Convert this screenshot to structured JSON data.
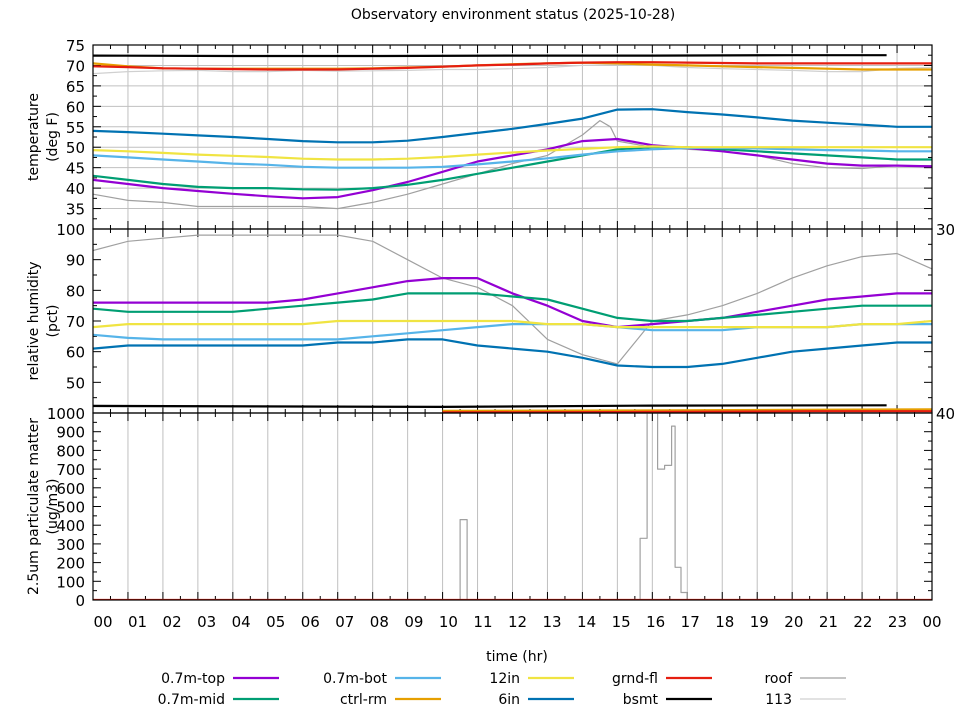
{
  "chart_data": {
    "type": "line",
    "title": "Observatory environment status (2025-10-28)",
    "xlabel": "time (hr)",
    "xlim": [
      0,
      24
    ],
    "x_tick_labels": [
      "00",
      "01",
      "02",
      "03",
      "04",
      "05",
      "06",
      "07",
      "08",
      "09",
      "10",
      "11",
      "12",
      "13",
      "14",
      "15",
      "16",
      "17",
      "18",
      "19",
      "20",
      "21",
      "22",
      "23",
      "00"
    ],
    "grid": "vertical lines every hour; temperature panel also horizontal every 5",
    "legend": {
      "placement": "bottom",
      "entries": [
        {
          "name": "0.7m-top",
          "color": "#9400d3"
        },
        {
          "name": "0.7m-bot",
          "color": "#56b4e9"
        },
        {
          "name": "12in",
          "color": "#f0e442"
        },
        {
          "name": "grnd-fl",
          "color": "#e51e10"
        },
        {
          "name": "roof",
          "color": "#a0a0a0"
        },
        {
          "name": "0.7m-mid",
          "color": "#009e73"
        },
        {
          "name": "ctrl-rm",
          "color": "#e69f00"
        },
        {
          "name": "6in",
          "color": "#0072b2"
        },
        {
          "name": "bsmt",
          "color": "#000000"
        },
        {
          "name": "113",
          "color": "#d0d0d0"
        }
      ]
    },
    "panels": [
      {
        "id": "temperature",
        "ylabel": [
          "temperature",
          "(deg F)"
        ],
        "ylim": [
          30,
          75
        ],
        "yticks": [
          30,
          35,
          40,
          45,
          50,
          55,
          60,
          65,
          70,
          75
        ],
        "hgrid": true,
        "series": [
          {
            "name": "113",
            "values": [
              68,
              68.5,
              68.7,
              68.8,
              68.5,
              68.5,
              68.8,
              68.6,
              68.7,
              68.8,
              69,
              69,
              69.2,
              69.5,
              70,
              70.2,
              70,
              69.5,
              69.2,
              69,
              68.8,
              68.5,
              68.5,
              69.3,
              69.5
            ]
          },
          {
            "name": "roof",
            "x": [
              0,
              1,
              2,
              3,
              4,
              5,
              6,
              7,
              8,
              9,
              10,
              11,
              12,
              13,
              14,
              14.5,
              14.8,
              15,
              16,
              17,
              18,
              19,
              20,
              21,
              22,
              23,
              24
            ],
            "values": [
              38.5,
              37,
              36.5,
              35.5,
              35.5,
              35.5,
              35.5,
              35,
              36.5,
              38.5,
              41,
              43.5,
              46,
              48,
              53,
              56.5,
              55,
              51.5,
              50,
              49.5,
              49,
              48,
              46,
              45,
              44.8,
              45.5,
              45.5
            ]
          },
          {
            "name": "0.7m-top",
            "values": [
              42,
              41,
              40,
              39.3,
              38.6,
              38,
              37.5,
              37.8,
              39.5,
              41.5,
              44,
              46.5,
              48,
              49.5,
              51.5,
              52,
              50.5,
              49.8,
              49,
              48,
              47,
              46,
              45.5,
              45.5,
              45.3
            ]
          },
          {
            "name": "0.7m-mid",
            "values": [
              43,
              42,
              41,
              40.3,
              40,
              40,
              39.7,
              39.6,
              40,
              40.8,
              42,
              43.5,
              45,
              46.5,
              48,
              49.5,
              50,
              50,
              49.5,
              49,
              48.5,
              48,
              47.5,
              47,
              47
            ]
          },
          {
            "name": "0.7m-bot",
            "values": [
              48,
              47.5,
              47,
              46.5,
              46,
              45.7,
              45.2,
              45,
              45,
              45,
              45.2,
              45.8,
              46.5,
              47.3,
              48.2,
              49,
              49.5,
              49.8,
              49.8,
              49.7,
              49.5,
              49.3,
              49.2,
              49,
              49
            ]
          },
          {
            "name": "12in",
            "values": [
              49.3,
              49,
              48.6,
              48.2,
              47.9,
              47.6,
              47.2,
              47,
              47,
              47.2,
              47.6,
              48.2,
              48.7,
              49.2,
              49.6,
              50,
              50.2,
              50,
              50,
              50,
              50,
              50,
              50,
              50,
              50
            ]
          },
          {
            "name": "6in",
            "values": [
              54,
              53.7,
              53.3,
              52.9,
              52.5,
              52,
              51.5,
              51.2,
              51.2,
              51.6,
              52.5,
              53.5,
              54.5,
              55.7,
              57,
              59.2,
              59.3,
              58.6,
              58,
              57.3,
              56.5,
              56,
              55.5,
              55,
              55
            ]
          },
          {
            "name": "ctrl-rm",
            "values": [
              70.5,
              69.8,
              69.3,
              69.2,
              69.2,
              69.2,
              69.2,
              69.2,
              69.3,
              69.5,
              69.7,
              70,
              70.3,
              70.5,
              70.7,
              70.5,
              70.2,
              70,
              69.8,
              69.6,
              69.4,
              69.2,
              69,
              69,
              69
            ]
          },
          {
            "name": "grnd-fl",
            "values": [
              69.8,
              69.6,
              69.3,
              69.2,
              69.1,
              69,
              69,
              69,
              69.2,
              69.4,
              69.7,
              70,
              70.2,
              70.5,
              70.7,
              70.8,
              70.8,
              70.7,
              70.6,
              70.5,
              70.5,
              70.5,
              70.5,
              70.5,
              70.5
            ]
          },
          {
            "name": "bsmt",
            "x": [
              0,
              4,
              8,
              12,
              16,
              20,
              22.7
            ],
            "values": [
              72.4,
              72.3,
              72.3,
              72.4,
              72.4,
              72.5,
              72.5
            ]
          }
        ]
      },
      {
        "id": "humidity",
        "ylabel": [
          "relative humidity",
          "(pct)"
        ],
        "ylim": [
          40,
          100
        ],
        "yticks": [
          40,
          50,
          60,
          70,
          80,
          90,
          100
        ],
        "hgrid": false,
        "series": [
          {
            "name": "roof",
            "values": [
              93,
              96,
              97,
              98,
              98,
              98,
              98,
              98,
              96,
              90,
              84,
              81,
              75,
              64,
              59,
              56,
              70,
              72,
              75,
              79,
              84,
              88,
              91,
              92,
              87
            ]
          },
          {
            "name": "113",
            "x": [
              0,
              10,
              15,
              22.7
            ],
            "values": [
              42,
              42,
              42.3,
              42.5
            ]
          },
          {
            "name": "0.7m-top",
            "values": [
              76,
              76,
              76,
              76,
              76,
              76,
              77,
              79,
              81,
              83,
              84,
              84,
              79,
              75,
              70,
              68,
              69,
              70,
              71,
              73,
              75,
              77,
              78,
              79,
              79
            ]
          },
          {
            "name": "0.7m-mid",
            "values": [
              74,
              73,
              73,
              73,
              73,
              74,
              75,
              76,
              77,
              79,
              79,
              79,
              78,
              77,
              74,
              71,
              70,
              70,
              71,
              72,
              73,
              74,
              75,
              75,
              75
            ]
          },
          {
            "name": "0.7m-bot",
            "values": [
              65.5,
              64.5,
              64,
              64,
              64,
              64,
              64,
              64,
              65,
              66,
              67,
              68,
              69,
              69,
              69,
              68,
              67,
              67,
              67,
              68,
              68,
              68,
              69,
              69,
              69
            ]
          },
          {
            "name": "12in",
            "values": [
              68,
              69,
              69,
              69,
              69,
              69,
              69,
              70,
              70,
              70,
              70,
              70,
              70,
              69,
              69,
              68,
              68,
              68,
              68,
              68,
              68,
              68,
              69,
              69,
              70
            ]
          },
          {
            "name": "6in",
            "values": [
              61,
              62,
              62,
              62,
              62,
              62,
              62,
              63,
              63,
              64,
              64,
              62,
              61,
              60,
              58,
              55.5,
              55,
              55,
              56,
              58,
              60,
              61,
              62,
              63,
              63
            ]
          },
          {
            "name": "ctrl-rm",
            "x": [
              10,
              15,
              20,
              24
            ],
            "values": [
              40.7,
              40.8,
              41,
              41.2
            ]
          },
          {
            "name": "grnd-fl",
            "x": [
              10,
              15,
              20.5,
              24
            ],
            "values": [
              40.2,
              40.3,
              40.6,
              40.6
            ]
          },
          {
            "name": "bsmt",
            "x": [
              0,
              10,
              16,
              22.7
            ],
            "values": [
              42.3,
              42,
              42.4,
              42.5
            ]
          }
        ]
      },
      {
        "id": "pm25",
        "ylabel": [
          "2.5um particulate matter",
          "(ug/m3)"
        ],
        "ylim": [
          0,
          1000
        ],
        "yticks": [
          0,
          100,
          200,
          300,
          400,
          500,
          600,
          700,
          800,
          900,
          1000
        ],
        "hgrid": false,
        "series": [
          {
            "name": "roof",
            "step": true,
            "x": [
              0,
              10.45,
              10.5,
              10.65,
              10.7,
              15.6,
              15.65,
              15.85,
              16.15,
              16.35,
              16.55,
              16.65,
              16.82,
              17.0,
              24
            ],
            "values": [
              0,
              0,
              430,
              430,
              0,
              0,
              330,
              1100,
              700,
              720,
              930,
              175,
              40,
              0,
              0
            ]
          },
          {
            "name": "grnd-fl",
            "x": [
              0,
              24
            ],
            "values": [
              0,
              0
            ]
          }
        ]
      }
    ]
  }
}
